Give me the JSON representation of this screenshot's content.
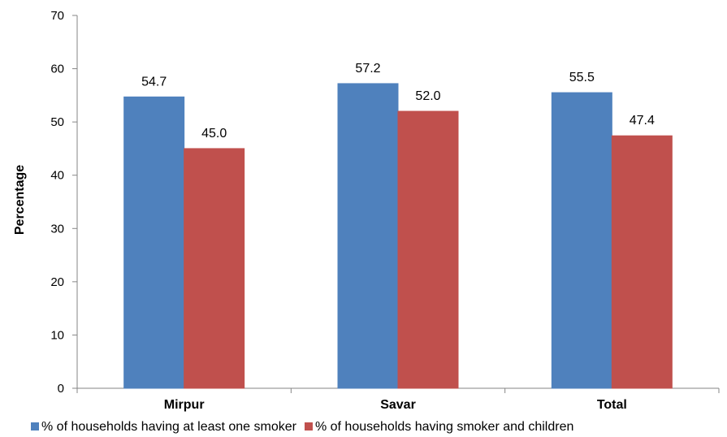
{
  "chart_data": {
    "type": "bar",
    "categories": [
      "Mirpur",
      "Savar",
      "Total"
    ],
    "series": [
      {
        "name": "% of households having at least one smoker",
        "values": [
          54.7,
          57.2,
          55.5
        ],
        "labels": [
          "54.7",
          "57.2",
          "55.5"
        ],
        "color": "#4f81bd"
      },
      {
        "name": "% of households having smoker and children",
        "values": [
          45.0,
          52.0,
          47.4
        ],
        "labels": [
          "45.0",
          "52.0",
          "47.4"
        ],
        "color": "#c0504d"
      }
    ],
    "title": "",
    "xlabel": "",
    "ylabel": "Percentage",
    "ylim": [
      0,
      70
    ],
    "yticks": [
      0,
      10,
      20,
      30,
      40,
      50,
      60,
      70
    ],
    "grid": false,
    "legend_position": "bottom"
  }
}
